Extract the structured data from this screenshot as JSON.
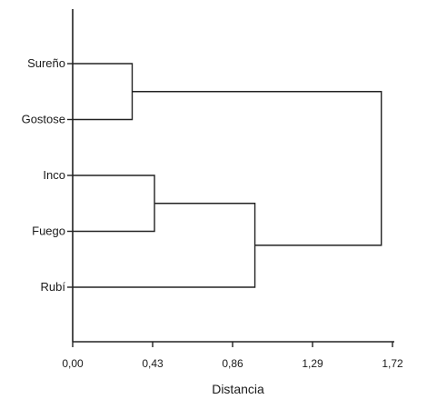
{
  "chart_data": {
    "type": "dendrogram",
    "title": "",
    "xlabel": "Distancia",
    "ylabel": "",
    "xlim": [
      0,
      1.72
    ],
    "x_ticks": [
      "0,00",
      "0,43",
      "0,86",
      "1,29",
      "1,72"
    ],
    "x_tick_values": [
      0,
      0.43,
      0.86,
      1.29,
      1.72
    ],
    "leaves": [
      "Sureño",
      "Gostose",
      "Inco",
      "Fuego",
      "Rubí"
    ],
    "merges": [
      {
        "children": [
          "Sureño",
          "Gostose"
        ],
        "distance": 0.32
      },
      {
        "children": [
          "Inco",
          "Fuego"
        ],
        "distance": 0.44
      },
      {
        "children": [
          [
            "Inco",
            "Fuego"
          ],
          "Rubí"
        ],
        "distance": 0.98
      },
      {
        "children": [
          [
            "Sureño",
            "Gostose"
          ],
          [
            [
              "Inco",
              "Fuego"
            ],
            "Rubí"
          ]
        ],
        "distance": 1.66
      }
    ],
    "grid": false,
    "line_color": "#222222"
  }
}
